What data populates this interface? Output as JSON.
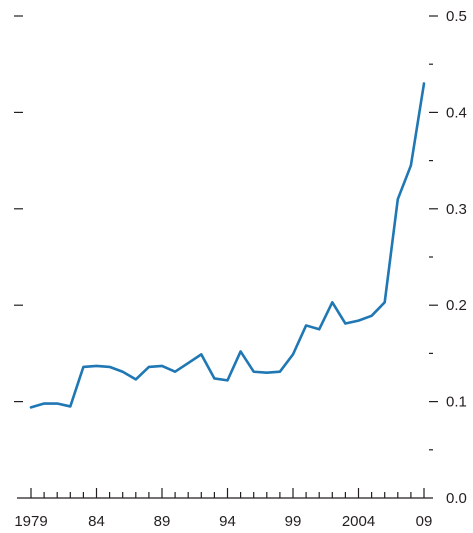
{
  "chart_data": {
    "type": "line",
    "title": "",
    "xlabel": "",
    "ylabel": "",
    "x": [
      1979,
      1980,
      1981,
      1982,
      1983,
      1984,
      1985,
      1986,
      1987,
      1988,
      1989,
      1990,
      1991,
      1992,
      1993,
      1994,
      1995,
      1996,
      1997,
      1998,
      1999,
      2000,
      2001,
      2002,
      2003,
      2004,
      2005,
      2006,
      2007,
      2008,
      2009
    ],
    "series": [
      {
        "name": "",
        "color": "#1f77b4",
        "values": [
          0.094,
          0.098,
          0.098,
          0.095,
          0.136,
          0.137,
          0.136,
          0.131,
          0.123,
          0.136,
          0.137,
          0.131,
          0.14,
          0.149,
          0.124,
          0.122,
          0.152,
          0.131,
          0.13,
          0.131,
          0.149,
          0.179,
          0.175,
          0.203,
          0.181,
          0.184,
          0.189,
          0.203,
          0.31,
          0.345,
          0.43
        ]
      }
    ],
    "xlim": [
      1979,
      2009
    ],
    "ylim": [
      0,
      0.5
    ],
    "x_tick_labels": [
      {
        "value": 1979,
        "label": "1979"
      },
      {
        "value": 1984,
        "label": "84"
      },
      {
        "value": 1989,
        "label": "89"
      },
      {
        "value": 1994,
        "label": "94"
      },
      {
        "value": 1999,
        "label": "99"
      },
      {
        "value": 2004,
        "label": "2004"
      },
      {
        "value": 2009,
        "label": "09"
      }
    ],
    "y_tick_labels": [
      {
        "value": 0.0,
        "label": "0.0"
      },
      {
        "value": 0.1,
        "label": "0.1"
      },
      {
        "value": 0.2,
        "label": "0.2"
      },
      {
        "value": 0.3,
        "label": "0.3"
      },
      {
        "value": 0.4,
        "label": "0.4"
      },
      {
        "value": 0.5,
        "label": "0.5"
      }
    ],
    "y_minor_step": 0.05,
    "x_minor_step": 1,
    "grid": false,
    "legend": "none"
  }
}
